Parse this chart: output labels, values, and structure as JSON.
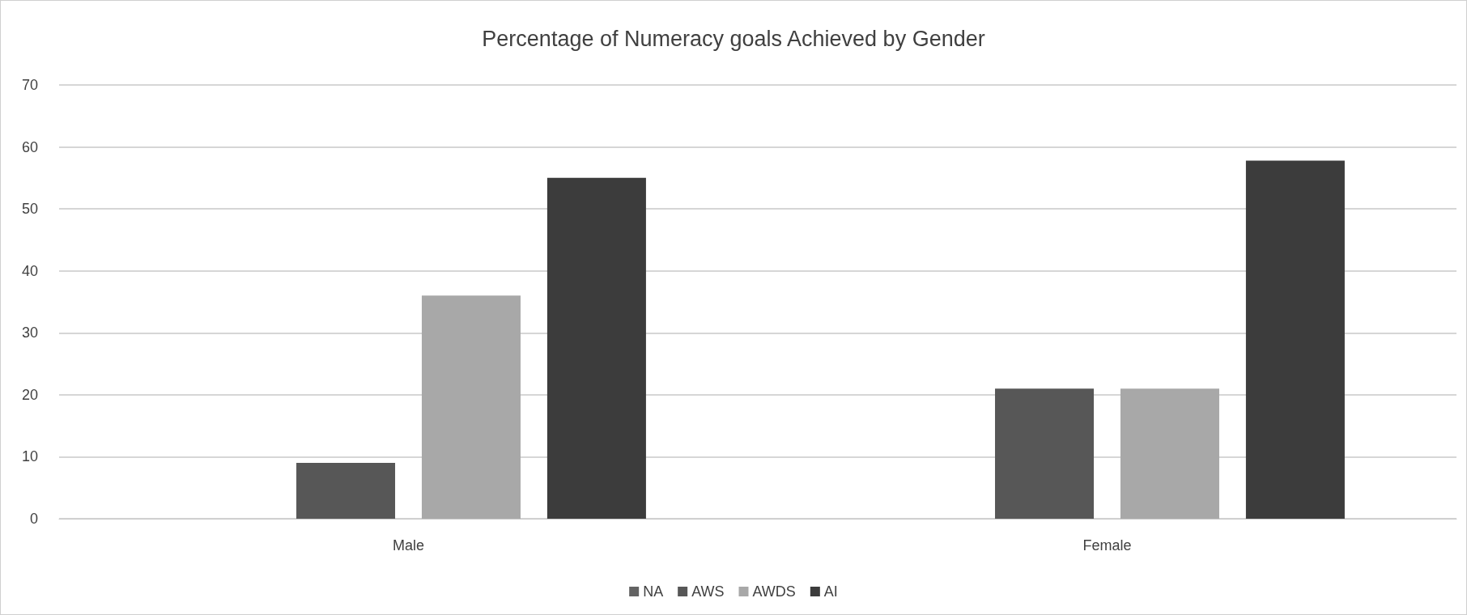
{
  "chart_data": {
    "type": "bar",
    "title": "Percentage of Numeracy goals Achieved by Gender",
    "categories": [
      "Male",
      "Female"
    ],
    "series": [
      {
        "name": "NA",
        "color": "#636363",
        "values": [
          0,
          0
        ]
      },
      {
        "name": "AWS",
        "color": "#575757",
        "values": [
          9,
          21
        ]
      },
      {
        "name": "AWDS",
        "color": "#a8a8a8",
        "values": [
          36,
          21
        ]
      },
      {
        "name": "AI",
        "color": "#3c3c3c",
        "values": [
          55,
          57.8
        ]
      }
    ],
    "ylim": [
      0,
      70
    ],
    "yticks": [
      0,
      10,
      20,
      30,
      40,
      50,
      60,
      70
    ],
    "grid": "y",
    "legend": "bottom"
  }
}
